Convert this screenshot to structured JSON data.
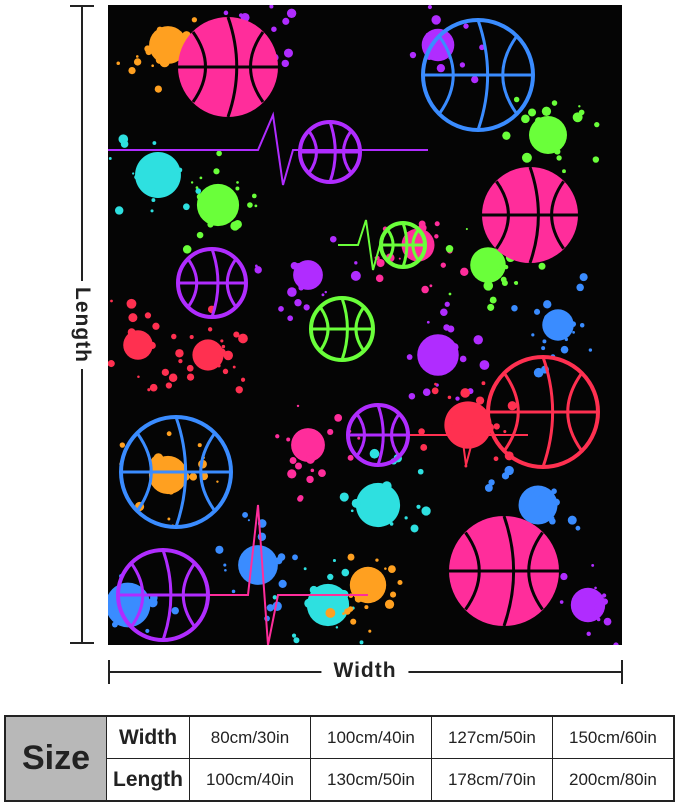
{
  "dimensions": {
    "length_label": "Length",
    "width_label": "Width"
  },
  "size_table": {
    "title": "Size",
    "rows": [
      {
        "label": "Width",
        "values": [
          "80cm/30in",
          "100cm/40in",
          "127cm/50in",
          "150cm/60in"
        ]
      },
      {
        "label": "Length",
        "values": [
          "100cm/40in",
          "130cm/50in",
          "178cm/70in",
          "200cm/80in"
        ]
      }
    ]
  },
  "colors": {
    "background": "#050505",
    "pink": "#ff2d9b",
    "purple": "#b02cff",
    "blue": "#3a8cff",
    "green": "#6aff3a",
    "cyan": "#2ee0e0",
    "orange": "#ffa020",
    "red": "#ff3050"
  }
}
